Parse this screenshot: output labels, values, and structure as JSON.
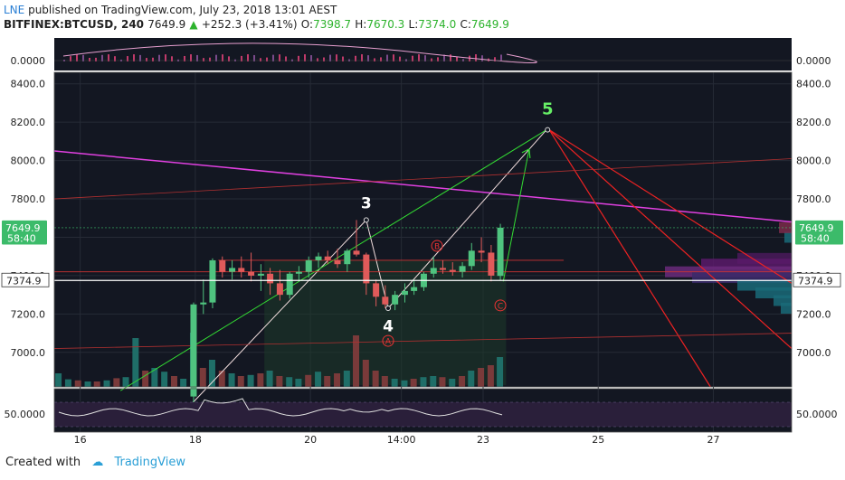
{
  "header": {
    "user": "LNE",
    "published": "published on TradingView.com, July 23, 2018 13:01 AEST",
    "symbol": "BITFINEX:BTCUSD, 240",
    "last": "7649.9",
    "change": "+252.3 (+3.41%)",
    "o_label": "O:",
    "o": "7398.7",
    "h_label": "H:",
    "h": "7670.3",
    "l_label": "L:",
    "l": "7374.0",
    "c_label": "C:",
    "c": "7649.9"
  },
  "footer": {
    "created": "Created with",
    "brand": "TradingView"
  },
  "colors": {
    "bull": "#26a69a",
    "bull_bright": "#4fc36f",
    "bear": "#e05a5a",
    "magenta": "#e040e0",
    "green_line": "#33dd33",
    "red_line": "#ee2222",
    "rsi_bg": "#e8d8f0"
  },
  "chart_data": {
    "type": "candlestick",
    "ylim": [
      6820,
      8460
    ],
    "y_ticks": [
      "8400.0",
      "8200.0",
      "8000.0",
      "7800.0",
      "7600.0",
      "7400.0",
      "7200.0",
      "7000.0"
    ],
    "x_ticks": [
      {
        "label": "16",
        "day": 16.0
      },
      {
        "label": "18",
        "day": 18.0
      },
      {
        "label": "20",
        "day": 20.0
      },
      {
        "label": "14:00",
        "day": 21.58
      },
      {
        "label": "23",
        "day": 23.0
      },
      {
        "label": "25",
        "day": 25.0
      },
      {
        "label": "27",
        "day": 27.0
      }
    ],
    "xlim_days": [
      15.55,
      28.36
    ],
    "candles": [
      {
        "d": 17.97,
        "o": 6770,
        "h": 7260,
        "l": 6740,
        "c": 7250
      },
      {
        "d": 18.14,
        "o": 7250,
        "h": 7380,
        "l": 7200,
        "c": 7260
      },
      {
        "d": 18.3,
        "o": 7260,
        "h": 7490,
        "l": 7230,
        "c": 7480
      },
      {
        "d": 18.47,
        "o": 7480,
        "h": 7500,
        "l": 7390,
        "c": 7420
      },
      {
        "d": 18.64,
        "o": 7420,
        "h": 7480,
        "l": 7380,
        "c": 7440
      },
      {
        "d": 18.8,
        "o": 7440,
        "h": 7500,
        "l": 7390,
        "c": 7420
      },
      {
        "d": 18.97,
        "o": 7420,
        "h": 7520,
        "l": 7370,
        "c": 7400
      },
      {
        "d": 19.14,
        "o": 7400,
        "h": 7460,
        "l": 7320,
        "c": 7410
      },
      {
        "d": 19.3,
        "o": 7410,
        "h": 7440,
        "l": 7300,
        "c": 7360
      },
      {
        "d": 19.47,
        "o": 7360,
        "h": 7430,
        "l": 7270,
        "c": 7300
      },
      {
        "d": 19.64,
        "o": 7300,
        "h": 7420,
        "l": 7280,
        "c": 7410
      },
      {
        "d": 19.8,
        "o": 7410,
        "h": 7450,
        "l": 7370,
        "c": 7420
      },
      {
        "d": 19.97,
        "o": 7420,
        "h": 7500,
        "l": 7390,
        "c": 7480
      },
      {
        "d": 20.14,
        "o": 7480,
        "h": 7520,
        "l": 7440,
        "c": 7500
      },
      {
        "d": 20.3,
        "o": 7500,
        "h": 7530,
        "l": 7460,
        "c": 7480
      },
      {
        "d": 20.47,
        "o": 7480,
        "h": 7540,
        "l": 7440,
        "c": 7460
      },
      {
        "d": 20.64,
        "o": 7460,
        "h": 7540,
        "l": 7420,
        "c": 7530
      },
      {
        "d": 20.8,
        "o": 7530,
        "h": 7690,
        "l": 7500,
        "c": 7510
      },
      {
        "d": 20.97,
        "o": 7510,
        "h": 7520,
        "l": 7300,
        "c": 7360
      },
      {
        "d": 21.14,
        "o": 7360,
        "h": 7380,
        "l": 7240,
        "c": 7290
      },
      {
        "d": 21.3,
        "o": 7290,
        "h": 7350,
        "l": 7230,
        "c": 7250
      },
      {
        "d": 21.47,
        "o": 7250,
        "h": 7320,
        "l": 7220,
        "c": 7300
      },
      {
        "d": 21.64,
        "o": 7300,
        "h": 7360,
        "l": 7260,
        "c": 7320
      },
      {
        "d": 21.8,
        "o": 7320,
        "h": 7380,
        "l": 7300,
        "c": 7340
      },
      {
        "d": 21.97,
        "o": 7340,
        "h": 7420,
        "l": 7320,
        "c": 7410
      },
      {
        "d": 22.14,
        "o": 7410,
        "h": 7500,
        "l": 7390,
        "c": 7440
      },
      {
        "d": 22.3,
        "o": 7440,
        "h": 7480,
        "l": 7410,
        "c": 7430
      },
      {
        "d": 22.47,
        "o": 7430,
        "h": 7470,
        "l": 7400,
        "c": 7420
      },
      {
        "d": 22.64,
        "o": 7420,
        "h": 7470,
        "l": 7390,
        "c": 7450
      },
      {
        "d": 22.8,
        "o": 7450,
        "h": 7570,
        "l": 7430,
        "c": 7530
      },
      {
        "d": 22.97,
        "o": 7530,
        "h": 7600,
        "l": 7470,
        "c": 7520
      },
      {
        "d": 23.14,
        "o": 7520,
        "h": 7560,
        "l": 7370,
        "c": 7400
      },
      {
        "d": 23.3,
        "o": 7398.7,
        "h": 7670.3,
        "l": 7374.0,
        "c": 7649.9
      }
    ],
    "volume_bars": [
      {
        "d": 15.63,
        "v": 0.25,
        "up": true
      },
      {
        "d": 15.8,
        "v": 0.14,
        "up": true
      },
      {
        "d": 15.97,
        "v": 0.12,
        "up": false
      },
      {
        "d": 16.14,
        "v": 0.1,
        "up": true
      },
      {
        "d": 16.3,
        "v": 0.1,
        "up": false
      },
      {
        "d": 16.47,
        "v": 0.12,
        "up": true
      },
      {
        "d": 16.64,
        "v": 0.16,
        "up": false
      },
      {
        "d": 16.8,
        "v": 0.18,
        "up": true
      },
      {
        "d": 16.97,
        "v": 0.9,
        "up": true
      },
      {
        "d": 17.14,
        "v": 0.3,
        "up": false
      },
      {
        "d": 17.3,
        "v": 0.35,
        "up": true
      },
      {
        "d": 17.47,
        "v": 0.28,
        "up": true
      },
      {
        "d": 17.64,
        "v": 0.2,
        "up": false
      },
      {
        "d": 17.8,
        "v": 0.15,
        "up": true
      },
      {
        "d": 17.97,
        "v": 1.0,
        "up": true
      },
      {
        "d": 18.14,
        "v": 0.35,
        "up": false
      },
      {
        "d": 18.3,
        "v": 0.5,
        "up": true
      },
      {
        "d": 18.47,
        "v": 0.3,
        "up": false
      },
      {
        "d": 18.64,
        "v": 0.25,
        "up": true
      },
      {
        "d": 18.8,
        "v": 0.2,
        "up": false
      },
      {
        "d": 18.97,
        "v": 0.22,
        "up": true
      },
      {
        "d": 19.14,
        "v": 0.25,
        "up": false
      },
      {
        "d": 19.3,
        "v": 0.3,
        "up": true
      },
      {
        "d": 19.47,
        "v": 0.2,
        "up": false
      },
      {
        "d": 19.64,
        "v": 0.18,
        "up": true
      },
      {
        "d": 19.8,
        "v": 0.15,
        "up": true
      },
      {
        "d": 19.97,
        "v": 0.22,
        "up": false
      },
      {
        "d": 20.14,
        "v": 0.28,
        "up": true
      },
      {
        "d": 20.3,
        "v": 0.2,
        "up": false
      },
      {
        "d": 20.47,
        "v": 0.25,
        "up": false
      },
      {
        "d": 20.64,
        "v": 0.3,
        "up": true
      },
      {
        "d": 20.8,
        "v": 0.95,
        "up": false
      },
      {
        "d": 20.97,
        "v": 0.5,
        "up": false
      },
      {
        "d": 21.14,
        "v": 0.3,
        "up": false
      },
      {
        "d": 21.3,
        "v": 0.2,
        "up": false
      },
      {
        "d": 21.47,
        "v": 0.15,
        "up": true
      },
      {
        "d": 21.64,
        "v": 0.12,
        "up": true
      },
      {
        "d": 21.8,
        "v": 0.15,
        "up": false
      },
      {
        "d": 21.97,
        "v": 0.18,
        "up": true
      },
      {
        "d": 22.14,
        "v": 0.2,
        "up": true
      },
      {
        "d": 22.3,
        "v": 0.18,
        "up": false
      },
      {
        "d": 22.47,
        "v": 0.15,
        "up": true
      },
      {
        "d": 22.64,
        "v": 0.2,
        "up": false
      },
      {
        "d": 22.8,
        "v": 0.3,
        "up": true
      },
      {
        "d": 22.97,
        "v": 0.35,
        "up": false
      },
      {
        "d": 23.14,
        "v": 0.4,
        "up": false
      },
      {
        "d": 23.3,
        "v": 0.55,
        "up": true
      }
    ],
    "trend_lines": [
      {
        "name": "magenta-resistance",
        "color": "#e040e0",
        "w": 1.5,
        "p1": [
          15.55,
          8050
        ],
        "p2": [
          28.36,
          7680
        ]
      },
      {
        "name": "impulse-1-3",
        "color": "#f2dede",
        "w": 1,
        "p1": [
          17.9,
          6720
        ],
        "p2": [
          20.97,
          7690
        ]
      },
      {
        "name": "impulse-3-4",
        "color": "#f2dede",
        "w": 1,
        "p1": [
          20.97,
          7690
        ],
        "p2": [
          21.35,
          7230
        ]
      },
      {
        "name": "impulse-4-5",
        "color": "#f2dede",
        "w": 1,
        "p1": [
          21.35,
          7230
        ],
        "p2": [
          24.1,
          8160
        ]
      },
      {
        "name": "green-channel",
        "color": "#33dd33",
        "w": 1,
        "p1": [
          16.7,
          6800
        ],
        "p2": [
          24.1,
          8160
        ]
      },
      {
        "name": "green-projection",
        "color": "#33dd33",
        "w": 1,
        "p1": [
          23.35,
          7370
        ],
        "p2": [
          23.8,
          8060
        ]
      },
      {
        "name": "red-fan-1",
        "color": "#ee2222",
        "w": 1.2,
        "p1": [
          24.15,
          8160
        ],
        "p2": [
          26.95,
          6820
        ]
      },
      {
        "name": "red-fan-2",
        "color": "#ee2222",
        "w": 1.2,
        "p1": [
          24.15,
          8160
        ],
        "p2": [
          28.36,
          7020
        ]
      },
      {
        "name": "red-fan-3",
        "color": "#ee2222",
        "w": 1.2,
        "p1": [
          24.15,
          8160
        ],
        "p2": [
          28.36,
          7360
        ]
      },
      {
        "name": "support-darkred",
        "color": "#b03030",
        "w": 0.8,
        "p1": [
          15.55,
          7020
        ],
        "p2": [
          28.36,
          7100
        ]
      },
      {
        "name": "upper-darkred",
        "color": "#b03030",
        "w": 0.8,
        "p1": [
          15.55,
          7800
        ],
        "p2": [
          28.36,
          8010
        ]
      },
      {
        "name": "horizontal-red-1",
        "color": "#cc3333",
        "w": 0.8,
        "p1": [
          18.4,
          7480
        ],
        "p2": [
          24.4,
          7480
        ]
      },
      {
        "name": "horizontal-red-2",
        "color": "#cc3333",
        "w": 0.8,
        "p1": [
          15.55,
          7420
        ],
        "p2": [
          28.36,
          7420
        ]
      }
    ],
    "wave_labels": [
      {
        "text": "3",
        "d": 20.97,
        "p": 7750,
        "color": "#ffffff",
        "size": 17
      },
      {
        "text": "4",
        "d": 21.35,
        "p": 7110,
        "color": "#ffffff",
        "size": 17
      },
      {
        "text": "5",
        "d": 24.12,
        "p": 8240,
        "color": "#66ee66",
        "size": 18
      }
    ],
    "circle_labels": [
      {
        "text": "A",
        "d": 21.35,
        "p": 7060,
        "color": "#ee3333"
      },
      {
        "text": "B",
        "d": 22.2,
        "p": 7555,
        "color": "#ee3333"
      },
      {
        "text": "C",
        "d": 23.3,
        "p": 7245,
        "color": "#ee3333"
      }
    ],
    "price_tags": {
      "last": {
        "price": 7649.9,
        "label": "7649.9",
        "color": "#3cbb6a"
      },
      "countdown": {
        "price": 7595,
        "label": "58:40",
        "color": "#3cbb6a"
      },
      "low_line": {
        "price": 7374.9,
        "label": "7374.9",
        "color": "#ffffff"
      }
    },
    "top_panel": {
      "label": "0.0000"
    },
    "rsi_panel": {
      "label": "50.0000"
    }
  }
}
